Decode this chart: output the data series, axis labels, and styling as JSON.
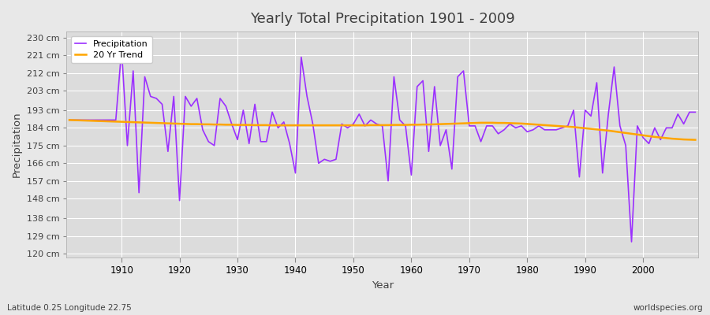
{
  "title": "Yearly Total Precipitation 1901 - 2009",
  "xlabel": "Year",
  "ylabel": "Precipitation",
  "subtitle": "Latitude 0.25 Longitude 22.75",
  "watermark": "worldspecies.org",
  "years": [
    1901,
    1902,
    1903,
    1904,
    1905,
    1906,
    1907,
    1908,
    1909,
    1910,
    1911,
    1912,
    1913,
    1914,
    1915,
    1916,
    1917,
    1918,
    1919,
    1920,
    1921,
    1922,
    1923,
    1924,
    1925,
    1926,
    1927,
    1928,
    1929,
    1930,
    1931,
    1932,
    1933,
    1934,
    1935,
    1936,
    1937,
    1938,
    1939,
    1940,
    1941,
    1942,
    1943,
    1944,
    1945,
    1946,
    1947,
    1948,
    1949,
    1950,
    1951,
    1952,
    1953,
    1954,
    1955,
    1956,
    1957,
    1958,
    1959,
    1960,
    1961,
    1962,
    1963,
    1964,
    1965,
    1966,
    1967,
    1968,
    1969,
    1970,
    1971,
    1972,
    1973,
    1974,
    1975,
    1976,
    1977,
    1978,
    1979,
    1980,
    1981,
    1982,
    1983,
    1984,
    1985,
    1986,
    1987,
    1988,
    1989,
    1990,
    1991,
    1992,
    1993,
    1994,
    1995,
    1996,
    1997,
    1998,
    1999,
    2000,
    2001,
    2002,
    2003,
    2004,
    2005,
    2006,
    2007,
    2008,
    2009
  ],
  "precipitation": [
    188,
    188,
    188,
    188,
    188,
    188,
    188,
    188,
    188,
    224,
    175,
    213,
    151,
    210,
    200,
    199,
    196,
    172,
    200,
    147,
    200,
    195,
    199,
    183,
    177,
    175,
    199,
    195,
    186,
    178,
    193,
    176,
    196,
    177,
    177,
    192,
    184,
    187,
    176,
    161,
    220,
    200,
    186,
    166,
    168,
    167,
    168,
    186,
    184,
    186,
    191,
    185,
    188,
    186,
    185,
    157,
    210,
    188,
    185,
    160,
    205,
    208,
    172,
    205,
    175,
    183,
    163,
    210,
    213,
    185,
    185,
    177,
    185,
    185,
    181,
    183,
    186,
    184,
    185,
    182,
    183,
    185,
    183,
    183,
    183,
    184,
    185,
    193,
    159,
    193,
    190,
    207,
    161,
    191,
    215,
    185,
    175,
    126,
    185,
    179,
    176,
    184,
    178,
    184,
    184,
    191,
    186,
    192,
    192
  ],
  "trend": [
    188.0,
    187.9,
    187.8,
    187.7,
    187.6,
    187.5,
    187.4,
    187.3,
    187.2,
    187.1,
    187.0,
    186.9,
    186.8,
    186.7,
    186.6,
    186.5,
    186.4,
    186.3,
    186.2,
    186.1,
    186.0,
    185.9,
    185.9,
    185.8,
    185.8,
    185.7,
    185.7,
    185.6,
    185.6,
    185.5,
    185.5,
    185.5,
    185.4,
    185.4,
    185.4,
    185.3,
    185.3,
    185.3,
    185.3,
    185.3,
    185.3,
    185.3,
    185.3,
    185.3,
    185.3,
    185.3,
    185.3,
    185.3,
    185.3,
    185.3,
    185.3,
    185.3,
    185.4,
    185.4,
    185.4,
    185.4,
    185.5,
    185.5,
    185.5,
    185.6,
    185.6,
    185.7,
    185.7,
    185.8,
    185.9,
    186.0,
    186.1,
    186.2,
    186.3,
    186.4,
    186.5,
    186.6,
    186.6,
    186.6,
    186.5,
    186.5,
    186.4,
    186.3,
    186.2,
    186.0,
    185.8,
    185.6,
    185.4,
    185.2,
    185.0,
    184.8,
    184.6,
    184.4,
    184.1,
    183.8,
    183.5,
    183.2,
    182.9,
    182.6,
    182.2,
    181.8,
    181.4,
    181.0,
    180.6,
    180.2,
    179.8,
    179.4,
    179.1,
    178.8,
    178.5,
    178.3,
    178.1,
    178.0,
    177.9
  ],
  "precip_color": "#9B30FF",
  "trend_color": "#FFA500",
  "bg_color": "#E8E8E8",
  "plot_bg_color": "#DCDCDC",
  "grid_color": "#FFFFFF",
  "text_color": "#404040",
  "yticks": [
    120,
    129,
    138,
    148,
    157,
    166,
    175,
    184,
    193,
    203,
    212,
    221,
    230
  ],
  "ylim": [
    118,
    233
  ],
  "xlim": [
    1901,
    2009
  ]
}
